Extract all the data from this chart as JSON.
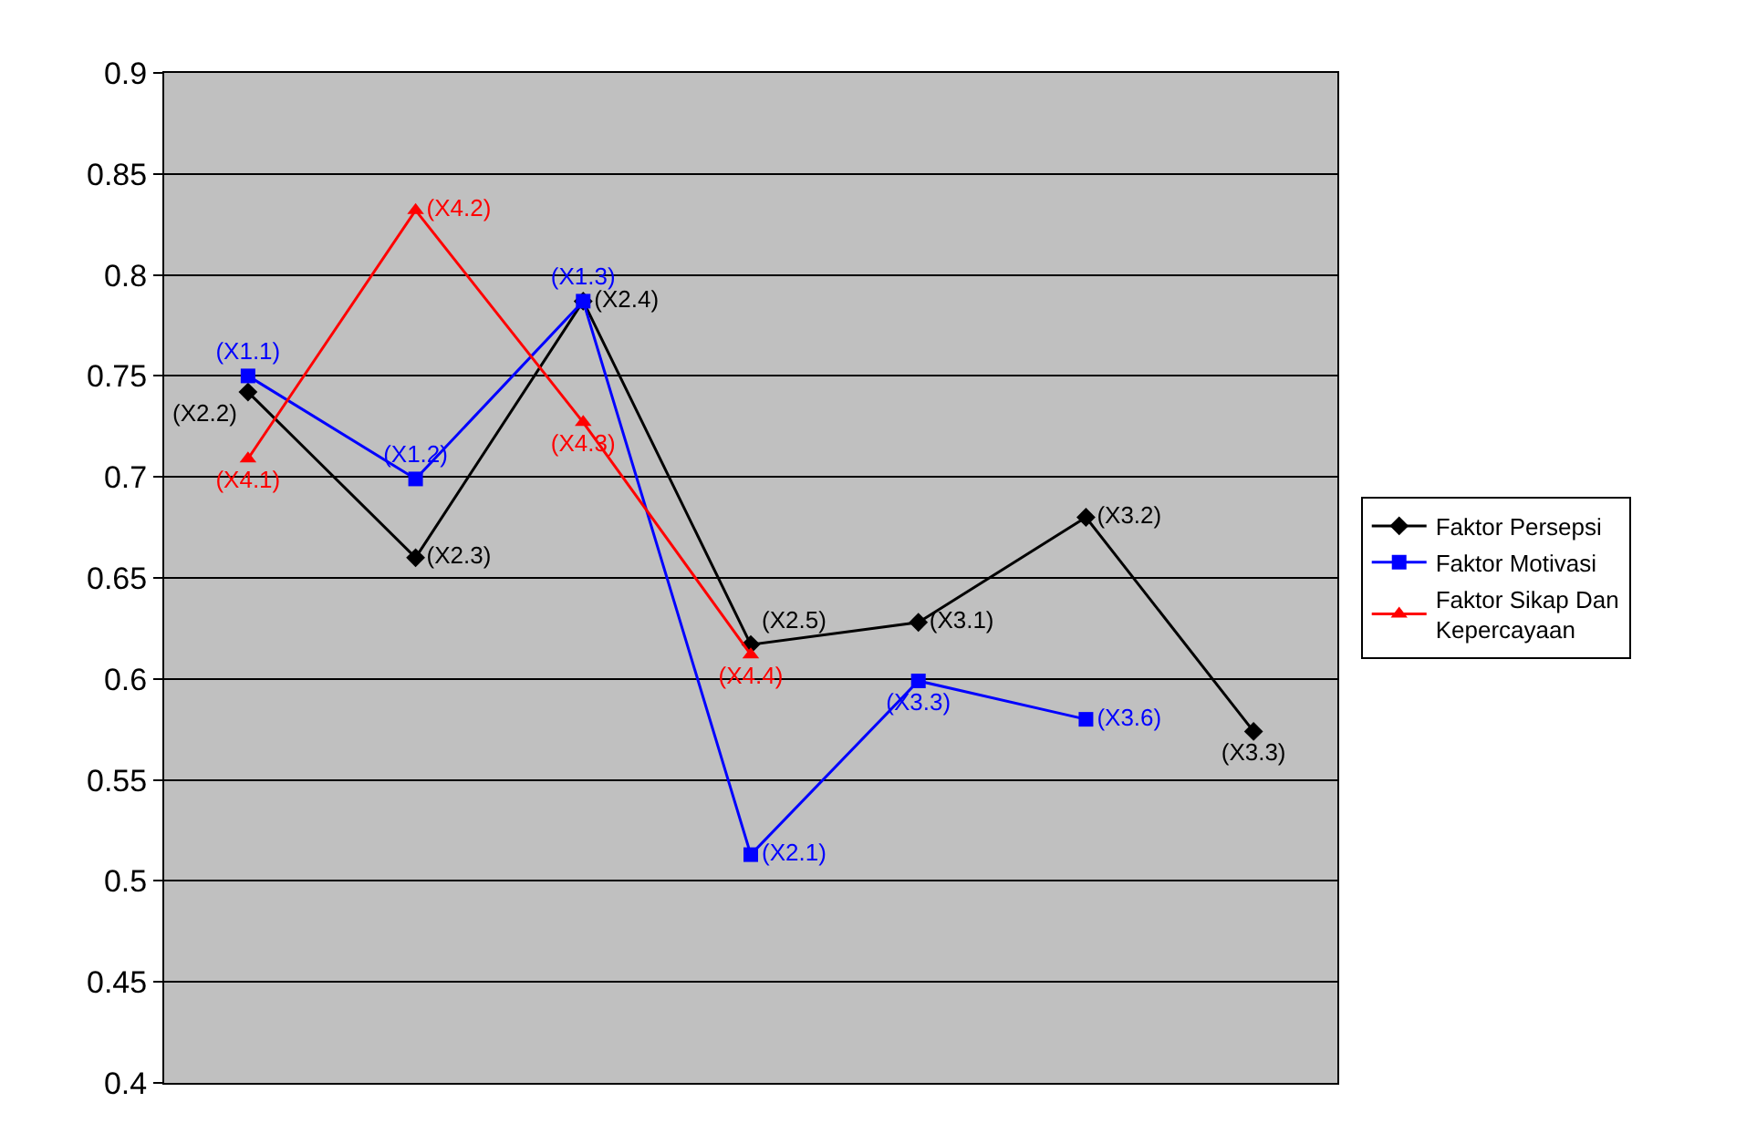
{
  "chart_data": {
    "type": "line",
    "categories": [
      null,
      null,
      null,
      null,
      null,
      null,
      null
    ],
    "series": [
      {
        "name": "Faktor Persepsi",
        "color": "#000000",
        "marker": "diamond",
        "values": [
          0.742,
          0.66,
          0.787,
          0.617,
          0.628,
          0.68,
          0.574
        ],
        "value_labels": [
          "(X2.2)",
          "(X2.3)",
          "(X2.4)",
          "(X2.5)",
          "(X3.1)",
          "(X3.2)",
          "(X3.3)"
        ]
      },
      {
        "name": "Faktor Motivasi",
        "color": "#0000ff",
        "marker": "square",
        "values": [
          0.75,
          0.699,
          0.787,
          0.513,
          0.599,
          0.58,
          null
        ],
        "value_labels": [
          "(X1.1)",
          "(X1.2)",
          "(X1.3)",
          "(X2.1)",
          "(X3.3)",
          "(X3.6)",
          null
        ]
      },
      {
        "name": "Faktor Sikap Dan Kepercayaan",
        "color": "#ff0000",
        "marker": "triangle",
        "values": [
          0.709,
          0.832,
          0.727,
          0.612,
          null,
          null,
          null
        ],
        "value_labels": [
          "(X4.1)",
          "(X4.2)",
          "(X4.3)",
          "(X4.4)",
          null,
          null,
          null
        ]
      }
    ],
    "ylim": [
      0.4,
      0.9
    ],
    "yticks": [
      0.4,
      0.45,
      0.5,
      0.55,
      0.6,
      0.65,
      0.7,
      0.75,
      0.8,
      0.85,
      0.9
    ],
    "grid": "y",
    "legend": "right"
  }
}
